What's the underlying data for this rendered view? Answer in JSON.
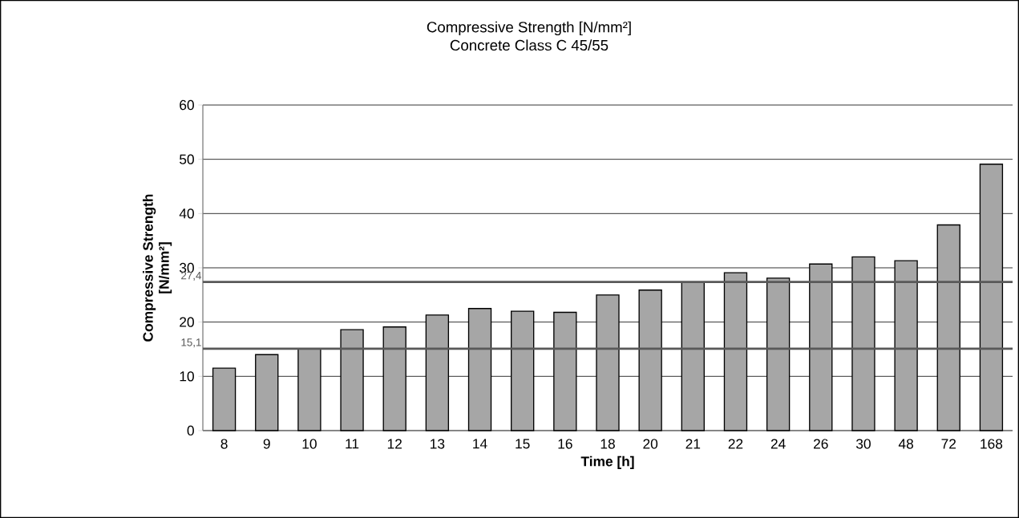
{
  "chart_data": {
    "type": "bar",
    "title": [
      "Compressive Strength [N/mm²]",
      "Concrete Class C 45/55"
    ],
    "xlabel": "Time [h]",
    "ylabel": [
      "Compressive Strength",
      "[N/mm²]"
    ],
    "categories": [
      "8",
      "9",
      "10",
      "11",
      "12",
      "13",
      "14",
      "15",
      "16",
      "18",
      "20",
      "21",
      "22",
      "24",
      "26",
      "30",
      "48",
      "72",
      "168"
    ],
    "values": [
      11.5,
      14.0,
      15.1,
      18.6,
      19.1,
      21.3,
      22.5,
      22.0,
      21.8,
      25.0,
      25.9,
      27.3,
      29.1,
      28.1,
      30.7,
      32.0,
      31.3,
      37.9,
      49.1
    ],
    "color": "#a6a6a6",
    "ylim": [
      0,
      60
    ],
    "yticks": [
      0,
      10,
      20,
      30,
      40,
      50,
      60
    ],
    "grid": "y",
    "ref_lines": [
      {
        "axis": "y",
        "value": 27.4,
        "label": "27,4",
        "color": "#595959"
      },
      {
        "axis": "y",
        "value": 15.1,
        "label": "15,1",
        "color": "#595959"
      }
    ]
  }
}
